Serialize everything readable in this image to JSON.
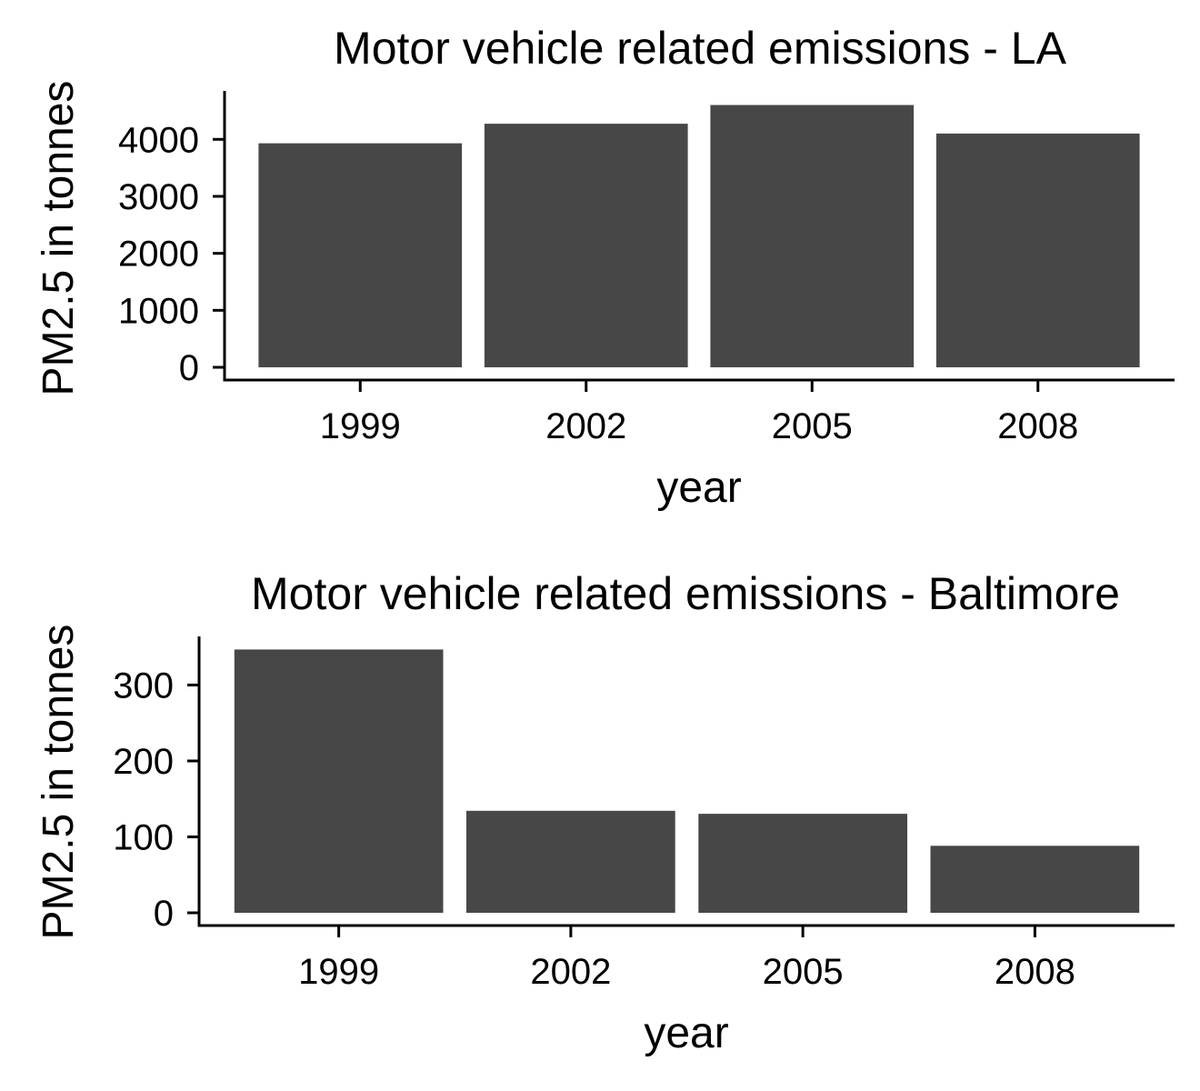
{
  "chart_data": [
    {
      "type": "bar",
      "title": "Motor vehicle related emissions - LA",
      "xlabel": "year",
      "ylabel": "PM2.5 in tonnes",
      "categories": [
        "1999",
        "2002",
        "2005",
        "2008"
      ],
      "values": [
        3931,
        4274,
        4602,
        4101
      ],
      "ylim": [
        0,
        4850
      ],
      "yticks": [
        0,
        1000,
        2000,
        3000,
        4000
      ],
      "bar_color": "#474747",
      "grid": false,
      "legend": "none"
    },
    {
      "type": "bar",
      "title": "Motor vehicle related emissions - Baltimore",
      "xlabel": "year",
      "ylabel": "PM2.5 in tonnes",
      "categories": [
        "1999",
        "2002",
        "2005",
        "2008"
      ],
      "values": [
        346.8,
        134.3,
        130.4,
        88.3
      ],
      "ylim": [
        0,
        364
      ],
      "yticks": [
        0,
        100,
        200,
        300
      ],
      "bar_color": "#474747",
      "grid": false,
      "legend": "none"
    }
  ]
}
